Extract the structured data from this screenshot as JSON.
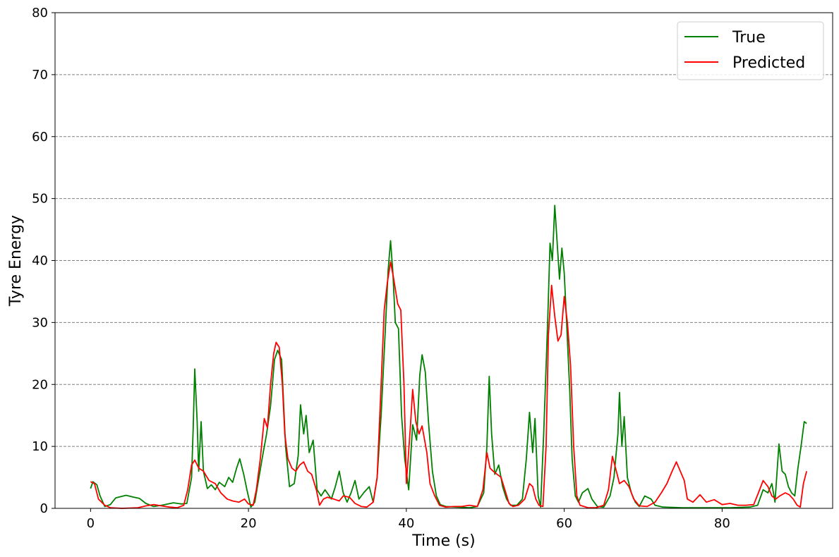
{
  "chart_data": {
    "type": "line",
    "title": "",
    "xlabel": "Time (s)",
    "ylabel": "Tyre Energy",
    "xlim": [
      -4.5,
      94
    ],
    "ylim": [
      0,
      80
    ],
    "xticks": [
      0,
      20,
      40,
      60,
      80
    ],
    "yticks": [
      0,
      10,
      20,
      30,
      40,
      50,
      60,
      70,
      80
    ],
    "grid": "horizontal-dashed",
    "legend_position": "top-right",
    "series": [
      {
        "name": "True",
        "color": "#008000",
        "points": [
          [
            0,
            3.2
          ],
          [
            0.3,
            4.3
          ],
          [
            0.8,
            3.8
          ],
          [
            1.2,
            2.0
          ],
          [
            1.8,
            0.3
          ],
          [
            2.5,
            0.6
          ],
          [
            3.2,
            1.7
          ],
          [
            4.5,
            2.1
          ],
          [
            5.5,
            1.8
          ],
          [
            6.2,
            1.6
          ],
          [
            7.0,
            0.8
          ],
          [
            8.0,
            0.3
          ],
          [
            9.0,
            0.5
          ],
          [
            10.5,
            0.9
          ],
          [
            11.5,
            0.7
          ],
          [
            12.2,
            0.8
          ],
          [
            12.8,
            5.0
          ],
          [
            13.0,
            13.0
          ],
          [
            13.2,
            22.5
          ],
          [
            13.5,
            14.0
          ],
          [
            13.7,
            6.0
          ],
          [
            14.0,
            14.0
          ],
          [
            14.3,
            6.0
          ],
          [
            14.8,
            3.2
          ],
          [
            15.3,
            3.8
          ],
          [
            15.8,
            3.0
          ],
          [
            16.3,
            4.2
          ],
          [
            17.0,
            3.5
          ],
          [
            17.5,
            5.0
          ],
          [
            18.0,
            4.2
          ],
          [
            18.5,
            6.5
          ],
          [
            18.9,
            8.0
          ],
          [
            19.4,
            5.5
          ],
          [
            19.8,
            3.0
          ],
          [
            20.3,
            0.2
          ],
          [
            20.8,
            1.0
          ],
          [
            21.2,
            4.0
          ],
          [
            21.8,
            8.5
          ],
          [
            22.3,
            12.0
          ],
          [
            22.8,
            16.5
          ],
          [
            23.3,
            24.0
          ],
          [
            23.7,
            25.5
          ],
          [
            24.2,
            24.0
          ],
          [
            24.7,
            10.0
          ],
          [
            25.2,
            3.5
          ],
          [
            25.8,
            4.0
          ],
          [
            26.3,
            8.5
          ],
          [
            26.6,
            16.7
          ],
          [
            27.0,
            12.0
          ],
          [
            27.3,
            15.0
          ],
          [
            27.7,
            9.0
          ],
          [
            28.2,
            11.0
          ],
          [
            28.7,
            3.0
          ],
          [
            29.2,
            2.0
          ],
          [
            29.7,
            3.0
          ],
          [
            30.5,
            1.5
          ],
          [
            31.0,
            3.5
          ],
          [
            31.5,
            6.0
          ],
          [
            32.0,
            2.5
          ],
          [
            32.5,
            1.0
          ],
          [
            33.0,
            2.5
          ],
          [
            33.5,
            4.5
          ],
          [
            34.0,
            1.5
          ],
          [
            34.6,
            2.5
          ],
          [
            35.3,
            3.5
          ],
          [
            35.8,
            1.0
          ],
          [
            36.3,
            5.0
          ],
          [
            36.8,
            15.0
          ],
          [
            37.3,
            28.0
          ],
          [
            37.7,
            38.5
          ],
          [
            38.0,
            43.2
          ],
          [
            38.3,
            38.0
          ],
          [
            38.6,
            30.0
          ],
          [
            39.0,
            29.0
          ],
          [
            39.4,
            15.0
          ],
          [
            39.8,
            8.0
          ],
          [
            40.3,
            3.0
          ],
          [
            40.8,
            13.5
          ],
          [
            41.3,
            11.0
          ],
          [
            41.7,
            21.5
          ],
          [
            42.0,
            24.8
          ],
          [
            42.4,
            22.0
          ],
          [
            42.8,
            14.0
          ],
          [
            43.3,
            6.0
          ],
          [
            43.8,
            2.0
          ],
          [
            44.3,
            0.6
          ],
          [
            45.0,
            0.3
          ],
          [
            46.5,
            0.2
          ],
          [
            48.0,
            0.1
          ],
          [
            49.0,
            0.3
          ],
          [
            49.8,
            2.5
          ],
          [
            50.2,
            10.0
          ],
          [
            50.5,
            21.3
          ],
          [
            50.8,
            12.0
          ],
          [
            51.2,
            5.5
          ],
          [
            51.7,
            7.0
          ],
          [
            52.2,
            3.5
          ],
          [
            52.7,
            1.5
          ],
          [
            53.2,
            0.5
          ],
          [
            54.0,
            0.5
          ],
          [
            54.7,
            1.5
          ],
          [
            55.2,
            8.0
          ],
          [
            55.6,
            15.5
          ],
          [
            56.0,
            9.0
          ],
          [
            56.3,
            14.5
          ],
          [
            56.7,
            2.0
          ],
          [
            57.0,
            0.2
          ],
          [
            57.4,
            12.0
          ],
          [
            57.9,
            30.0
          ],
          [
            58.2,
            42.8
          ],
          [
            58.5,
            40.0
          ],
          [
            58.8,
            48.9
          ],
          [
            59.1,
            43.0
          ],
          [
            59.4,
            37.0
          ],
          [
            59.7,
            42.0
          ],
          [
            60.0,
            38.0
          ],
          [
            60.3,
            30.0
          ],
          [
            60.7,
            19.0
          ],
          [
            61.0,
            8.0
          ],
          [
            61.4,
            2.0
          ],
          [
            61.8,
            1.0
          ],
          [
            62.3,
            2.5
          ],
          [
            63.0,
            3.2
          ],
          [
            63.5,
            1.5
          ],
          [
            64.2,
            0.3
          ],
          [
            65.0,
            0.2
          ],
          [
            65.8,
            2.0
          ],
          [
            66.3,
            5.0
          ],
          [
            66.8,
            12.0
          ],
          [
            67.0,
            18.7
          ],
          [
            67.3,
            10.0
          ],
          [
            67.6,
            14.8
          ],
          [
            68.0,
            5.0
          ],
          [
            68.5,
            2.5
          ],
          [
            69.0,
            1.0
          ],
          [
            69.5,
            0.3
          ],
          [
            70.2,
            2.0
          ],
          [
            71.0,
            1.5
          ],
          [
            71.5,
            0.5
          ],
          [
            72.5,
            0.2
          ],
          [
            75.0,
            0.1
          ],
          [
            78.0,
            0.1
          ],
          [
            81.0,
            0.1
          ],
          [
            83.5,
            0.2
          ],
          [
            84.5,
            0.5
          ],
          [
            85.2,
            3.0
          ],
          [
            85.8,
            2.5
          ],
          [
            86.3,
            4.0
          ],
          [
            86.7,
            1.0
          ],
          [
            87.2,
            10.4
          ],
          [
            87.6,
            6.0
          ],
          [
            88.0,
            5.5
          ],
          [
            88.4,
            3.5
          ],
          [
            88.8,
            2.5
          ],
          [
            89.2,
            2.0
          ],
          [
            89.6,
            6.5
          ],
          [
            90.0,
            10.0
          ],
          [
            90.4,
            14.0
          ],
          [
            90.7,
            13.7
          ]
        ]
      },
      {
        "name": "Predicted",
        "color": "#ff0000",
        "points": [
          [
            0,
            4.3
          ],
          [
            0.5,
            4.0
          ],
          [
            1.0,
            1.5
          ],
          [
            1.8,
            0.5
          ],
          [
            2.5,
            0.1
          ],
          [
            4.0,
            0.0
          ],
          [
            6.0,
            0.1
          ],
          [
            7.0,
            0.4
          ],
          [
            8.0,
            0.6
          ],
          [
            9.0,
            0.4
          ],
          [
            10.0,
            0.2
          ],
          [
            11.0,
            0.1
          ],
          [
            11.8,
            0.5
          ],
          [
            12.3,
            3.0
          ],
          [
            12.8,
            7.0
          ],
          [
            13.2,
            7.8
          ],
          [
            13.7,
            6.5
          ],
          [
            14.3,
            6.0
          ],
          [
            15.0,
            4.5
          ],
          [
            15.8,
            4.0
          ],
          [
            16.5,
            2.5
          ],
          [
            17.3,
            1.5
          ],
          [
            18.0,
            1.2
          ],
          [
            18.8,
            1.0
          ],
          [
            19.5,
            1.5
          ],
          [
            20.0,
            0.7
          ],
          [
            20.6,
            0.5
          ],
          [
            21.0,
            3.0
          ],
          [
            21.5,
            8.0
          ],
          [
            22.0,
            14.5
          ],
          [
            22.4,
            13.0
          ],
          [
            22.8,
            20.0
          ],
          [
            23.2,
            25.0
          ],
          [
            23.5,
            26.8
          ],
          [
            23.9,
            26.0
          ],
          [
            24.3,
            20.0
          ],
          [
            24.6,
            12.0
          ],
          [
            25.0,
            8.0
          ],
          [
            25.5,
            6.5
          ],
          [
            26.0,
            6.0
          ],
          [
            26.5,
            7.0
          ],
          [
            27.0,
            7.5
          ],
          [
            27.5,
            6.0
          ],
          [
            28.0,
            5.5
          ],
          [
            28.6,
            3.0
          ],
          [
            29.0,
            0.5
          ],
          [
            29.5,
            1.5
          ],
          [
            30.0,
            1.8
          ],
          [
            30.8,
            1.5
          ],
          [
            31.5,
            1.2
          ],
          [
            32.0,
            2.0
          ],
          [
            32.8,
            1.8
          ],
          [
            33.5,
            0.8
          ],
          [
            34.3,
            0.3
          ],
          [
            35.0,
            0.2
          ],
          [
            35.8,
            1.0
          ],
          [
            36.3,
            5.0
          ],
          [
            36.8,
            20.0
          ],
          [
            37.2,
            32.0
          ],
          [
            37.6,
            36.5
          ],
          [
            38.0,
            39.8
          ],
          [
            38.4,
            37.0
          ],
          [
            38.9,
            33.0
          ],
          [
            39.3,
            32.0
          ],
          [
            39.7,
            20.0
          ],
          [
            40.0,
            4.0
          ],
          [
            40.5,
            13.0
          ],
          [
            40.8,
            19.2
          ],
          [
            41.2,
            14.0
          ],
          [
            41.6,
            12.0
          ],
          [
            42.0,
            13.3
          ],
          [
            42.6,
            9.0
          ],
          [
            43.0,
            4.0
          ],
          [
            43.6,
            2.0
          ],
          [
            44.2,
            0.5
          ],
          [
            45.0,
            0.2
          ],
          [
            46.0,
            0.3
          ],
          [
            47.0,
            0.3
          ],
          [
            48.0,
            0.5
          ],
          [
            49.0,
            0.3
          ],
          [
            49.7,
            3.0
          ],
          [
            50.2,
            9.0
          ],
          [
            50.6,
            6.5
          ],
          [
            51.0,
            6.0
          ],
          [
            51.5,
            5.5
          ],
          [
            52.0,
            5.0
          ],
          [
            52.6,
            2.5
          ],
          [
            53.0,
            0.8
          ],
          [
            53.5,
            0.3
          ],
          [
            54.2,
            0.5
          ],
          [
            55.0,
            1.5
          ],
          [
            55.6,
            4.0
          ],
          [
            56.0,
            3.5
          ],
          [
            56.4,
            1.5
          ],
          [
            56.8,
            0.5
          ],
          [
            57.3,
            0.3
          ],
          [
            57.7,
            10.0
          ],
          [
            58.0,
            28.0
          ],
          [
            58.4,
            36.0
          ],
          [
            58.8,
            31.0
          ],
          [
            59.2,
            27.0
          ],
          [
            59.6,
            28.0
          ],
          [
            60.0,
            34.2
          ],
          [
            60.4,
            30.0
          ],
          [
            60.8,
            23.0
          ],
          [
            61.2,
            10.0
          ],
          [
            61.6,
            2.0
          ],
          [
            62.0,
            0.5
          ],
          [
            63.0,
            0.1
          ],
          [
            64.0,
            0.1
          ],
          [
            65.0,
            0.5
          ],
          [
            65.6,
            3.0
          ],
          [
            66.1,
            8.4
          ],
          [
            66.6,
            6.0
          ],
          [
            67.0,
            4.0
          ],
          [
            67.6,
            4.5
          ],
          [
            68.2,
            3.5
          ],
          [
            68.8,
            1.5
          ],
          [
            69.5,
            0.4
          ],
          [
            70.5,
            0.3
          ],
          [
            71.5,
            1.0
          ],
          [
            72.3,
            2.5
          ],
          [
            73.0,
            4.0
          ],
          [
            73.6,
            5.8
          ],
          [
            74.2,
            7.5
          ],
          [
            74.7,
            6.0
          ],
          [
            75.2,
            4.5
          ],
          [
            75.6,
            1.5
          ],
          [
            76.3,
            1.0
          ],
          [
            77.2,
            2.2
          ],
          [
            78.0,
            1.0
          ],
          [
            79.0,
            1.4
          ],
          [
            80.0,
            0.6
          ],
          [
            81.0,
            0.8
          ],
          [
            82.0,
            0.5
          ],
          [
            83.0,
            0.5
          ],
          [
            84.0,
            0.6
          ],
          [
            84.6,
            2.5
          ],
          [
            85.2,
            4.5
          ],
          [
            85.8,
            3.5
          ],
          [
            86.3,
            2.0
          ],
          [
            86.8,
            1.5
          ],
          [
            87.3,
            2.0
          ],
          [
            88.0,
            2.5
          ],
          [
            88.5,
            2.2
          ],
          [
            89.0,
            1.5
          ],
          [
            89.5,
            0.5
          ],
          [
            89.9,
            0.2
          ],
          [
            90.3,
            4.0
          ],
          [
            90.7,
            6.0
          ]
        ]
      }
    ]
  }
}
